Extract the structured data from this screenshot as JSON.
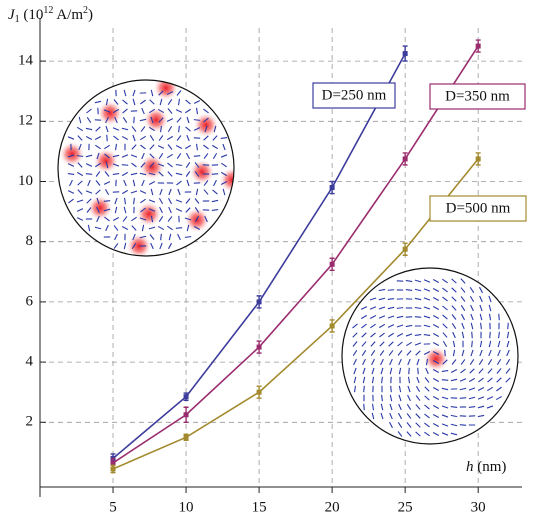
{
  "chart_data": {
    "type": "line",
    "x_label": [
      "h",
      " (nm)"
    ],
    "y_label": [
      "J",
      "1",
      " (10",
      "12",
      " A/m",
      "2",
      ")"
    ],
    "x": [
      5,
      10,
      15,
      20,
      25,
      30
    ],
    "series": [
      {
        "name": "D=250 nm",
        "color": "#3c3c9c",
        "values": [
          0.8,
          2.85,
          6.0,
          9.8,
          14.25,
          null
        ],
        "errors": [
          0.15,
          0.12,
          0.2,
          0.2,
          0.25,
          null
        ]
      },
      {
        "name": "D=350 nm",
        "color": "#9a2c6e",
        "values": [
          0.65,
          2.25,
          4.5,
          7.25,
          10.75,
          14.5
        ],
        "errors": [
          0.15,
          0.25,
          0.2,
          0.2,
          0.2,
          0.2
        ]
      },
      {
        "name": "D=500 nm",
        "color": "#a38a2e",
        "values": [
          0.45,
          1.5,
          3.0,
          5.2,
          7.75,
          10.75
        ],
        "errors": [
          0.12,
          0.1,
          0.2,
          0.2,
          0.2,
          0.2
        ]
      }
    ],
    "xlim": [
      0,
      33
    ],
    "ylim": [
      -0.15,
      15.1
    ],
    "xticks": [
      5,
      10,
      15,
      20,
      25,
      30
    ],
    "yticks": [
      2,
      4,
      6,
      8,
      10,
      12,
      14
    ],
    "grid": true
  }
}
